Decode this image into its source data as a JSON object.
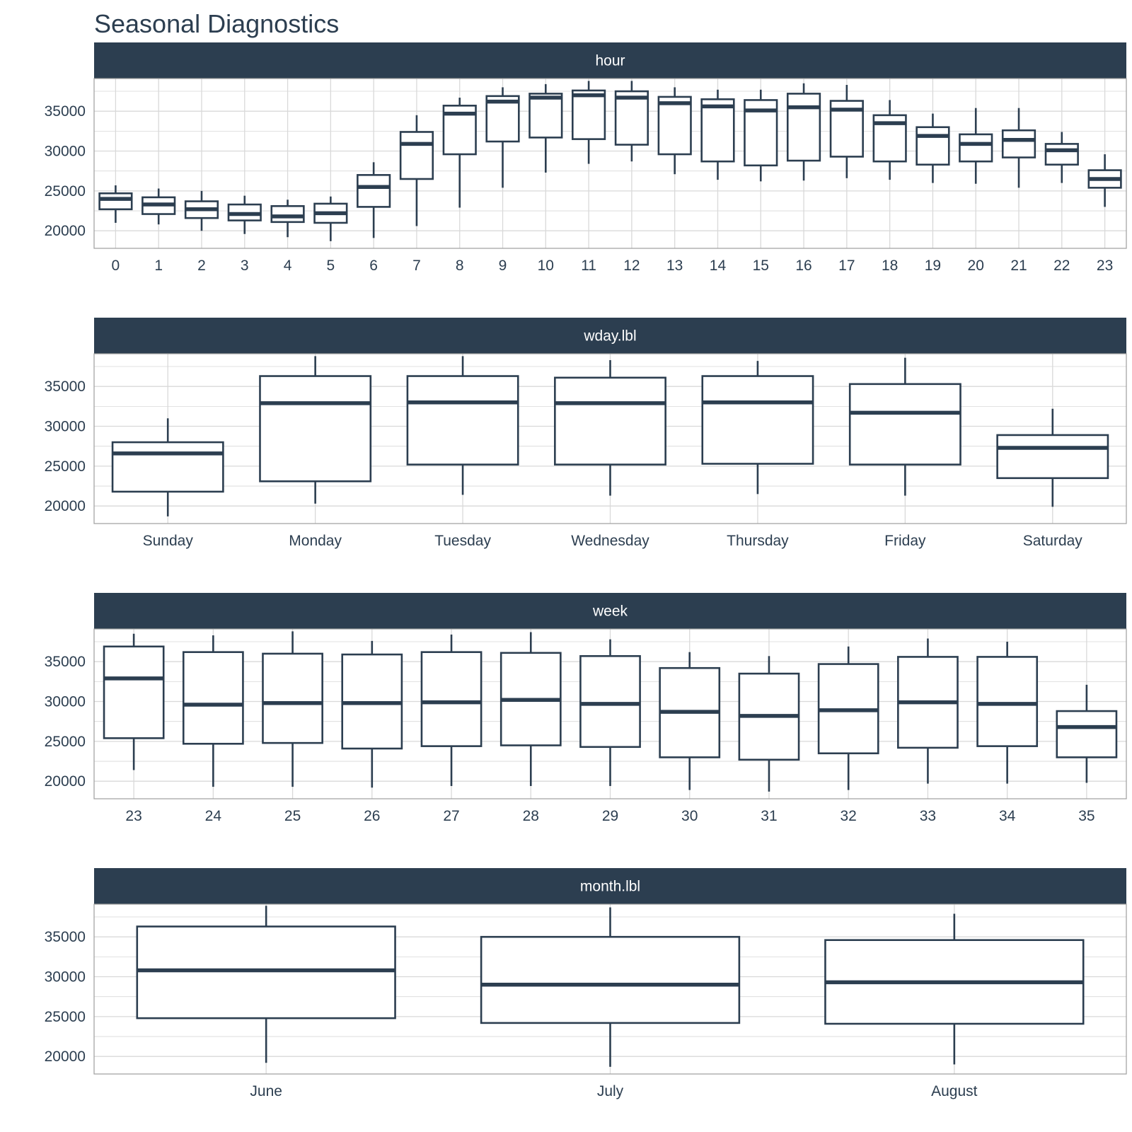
{
  "chart_data": {
    "type": "boxplot",
    "title": "Seasonal Diagnostics",
    "colors": {
      "line": "#2c3e50",
      "strip": "#2c3e50",
      "strip_text": "#ffffff",
      "grid": "#d9d9d9",
      "panel_border": "#9e9e9e",
      "text": "#2c3e50"
    },
    "y_ticks": [
      20000,
      25000,
      30000,
      35000
    ],
    "ylim": [
      17800,
      39100
    ],
    "grid": true,
    "panels": [
      {
        "facet": "hour",
        "categories": [
          "0",
          "1",
          "2",
          "3",
          "4",
          "5",
          "6",
          "7",
          "8",
          "9",
          "10",
          "11",
          "12",
          "13",
          "14",
          "15",
          "16",
          "17",
          "18",
          "19",
          "20",
          "21",
          "22",
          "23"
        ],
        "boxes": [
          {
            "min": 21000,
            "q1": 22700,
            "median": 24000,
            "q3": 24700,
            "max": 25700
          },
          {
            "min": 20800,
            "q1": 22100,
            "median": 23300,
            "q3": 24200,
            "max": 25300
          },
          {
            "min": 20000,
            "q1": 21600,
            "median": 22700,
            "q3": 23700,
            "max": 25000
          },
          {
            "min": 19600,
            "q1": 21300,
            "median": 22100,
            "q3": 23300,
            "max": 24400
          },
          {
            "min": 19200,
            "q1": 21100,
            "median": 21800,
            "q3": 23100,
            "max": 23900
          },
          {
            "min": 18700,
            "q1": 21000,
            "median": 22200,
            "q3": 23400,
            "max": 24300
          },
          {
            "min": 19100,
            "q1": 23000,
            "median": 25500,
            "q3": 27000,
            "max": 28600
          },
          {
            "min": 20600,
            "q1": 26500,
            "median": 30900,
            "q3": 32400,
            "max": 34500
          },
          {
            "min": 22900,
            "q1": 29600,
            "median": 34700,
            "q3": 35700,
            "max": 36700
          },
          {
            "min": 25400,
            "q1": 31200,
            "median": 36200,
            "q3": 36900,
            "max": 38000
          },
          {
            "min": 27300,
            "q1": 31700,
            "median": 36700,
            "q3": 37200,
            "max": 38400
          },
          {
            "min": 28400,
            "q1": 31500,
            "median": 37000,
            "q3": 37600,
            "max": 38800
          },
          {
            "min": 28700,
            "q1": 30800,
            "median": 36700,
            "q3": 37500,
            "max": 38800
          },
          {
            "min": 27100,
            "q1": 29600,
            "median": 36000,
            "q3": 36800,
            "max": 38000
          },
          {
            "min": 26400,
            "q1": 28700,
            "median": 35600,
            "q3": 36500,
            "max": 37700
          },
          {
            "min": 26200,
            "q1": 28200,
            "median": 35100,
            "q3": 36400,
            "max": 37700
          },
          {
            "min": 26300,
            "q1": 28800,
            "median": 35500,
            "q3": 37200,
            "max": 38500
          },
          {
            "min": 26600,
            "q1": 29300,
            "median": 35200,
            "q3": 36300,
            "max": 38300
          },
          {
            "min": 26400,
            "q1": 28700,
            "median": 33500,
            "q3": 34500,
            "max": 36400
          },
          {
            "min": 26000,
            "q1": 28300,
            "median": 31900,
            "q3": 33000,
            "max": 34700
          },
          {
            "min": 25900,
            "q1": 28700,
            "median": 30900,
            "q3": 32100,
            "max": 35400
          },
          {
            "min": 25400,
            "q1": 29200,
            "median": 31400,
            "q3": 32600,
            "max": 35400
          },
          {
            "min": 26000,
            "q1": 28300,
            "median": 30100,
            "q3": 30900,
            "max": 32400
          },
          {
            "min": 23000,
            "q1": 25400,
            "median": 26500,
            "q3": 27600,
            "max": 29600
          }
        ]
      },
      {
        "facet": "wday.lbl",
        "categories": [
          "Sunday",
          "Monday",
          "Tuesday",
          "Wednesday",
          "Thursday",
          "Friday",
          "Saturday"
        ],
        "boxes": [
          {
            "min": 18700,
            "q1": 21800,
            "median": 26600,
            "q3": 28000,
            "max": 31000
          },
          {
            "min": 20300,
            "q1": 23100,
            "median": 32900,
            "q3": 36300,
            "max": 38800
          },
          {
            "min": 21400,
            "q1": 25200,
            "median": 33000,
            "q3": 36300,
            "max": 38800
          },
          {
            "min": 21300,
            "q1": 25200,
            "median": 32900,
            "q3": 36100,
            "max": 38300
          },
          {
            "min": 21500,
            "q1": 25300,
            "median": 33000,
            "q3": 36300,
            "max": 38200
          },
          {
            "min": 21300,
            "q1": 25200,
            "median": 31700,
            "q3": 35300,
            "max": 38600
          },
          {
            "min": 19900,
            "q1": 23500,
            "median": 27300,
            "q3": 28900,
            "max": 32200
          }
        ]
      },
      {
        "facet": "week",
        "categories": [
          "23",
          "24",
          "25",
          "26",
          "27",
          "28",
          "29",
          "30",
          "31",
          "32",
          "33",
          "34",
          "35"
        ],
        "boxes": [
          {
            "min": 21400,
            "q1": 25400,
            "median": 32900,
            "q3": 36900,
            "max": 38500
          },
          {
            "min": 19300,
            "q1": 24700,
            "median": 29600,
            "q3": 36200,
            "max": 38300
          },
          {
            "min": 19300,
            "q1": 24800,
            "median": 29800,
            "q3": 36000,
            "max": 38800
          },
          {
            "min": 19200,
            "q1": 24100,
            "median": 29800,
            "q3": 35900,
            "max": 37600
          },
          {
            "min": 19400,
            "q1": 24400,
            "median": 29900,
            "q3": 36200,
            "max": 38400
          },
          {
            "min": 19400,
            "q1": 24500,
            "median": 30200,
            "q3": 36100,
            "max": 38700
          },
          {
            "min": 19400,
            "q1": 24300,
            "median": 29700,
            "q3": 35700,
            "max": 37800
          },
          {
            "min": 18900,
            "q1": 23000,
            "median": 28700,
            "q3": 34200,
            "max": 36200
          },
          {
            "min": 18700,
            "q1": 22700,
            "median": 28200,
            "q3": 33500,
            "max": 35700
          },
          {
            "min": 18900,
            "q1": 23500,
            "median": 28900,
            "q3": 34700,
            "max": 36900
          },
          {
            "min": 19700,
            "q1": 24200,
            "median": 29900,
            "q3": 35600,
            "max": 37900
          },
          {
            "min": 19700,
            "q1": 24400,
            "median": 29700,
            "q3": 35600,
            "max": 37500
          },
          {
            "min": 19800,
            "q1": 23000,
            "median": 26800,
            "q3": 28800,
            "max": 32100
          }
        ]
      },
      {
        "facet": "month.lbl",
        "categories": [
          "June",
          "July",
          "August"
        ],
        "boxes": [
          {
            "min": 19200,
            "q1": 24800,
            "median": 30800,
            "q3": 36300,
            "max": 38900
          },
          {
            "min": 18700,
            "q1": 24200,
            "median": 29000,
            "q3": 35000,
            "max": 38700
          },
          {
            "min": 19000,
            "q1": 24100,
            "median": 29300,
            "q3": 34600,
            "max": 37900
          }
        ]
      }
    ]
  }
}
